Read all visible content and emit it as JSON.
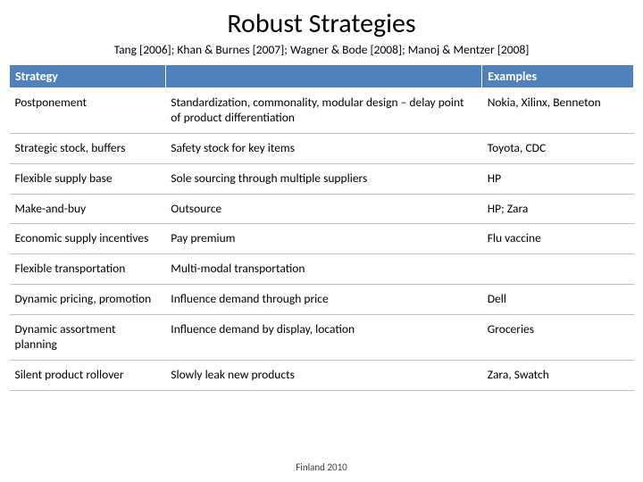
{
  "title": "Robust Strategies",
  "subtitle": "Tang [2006]; Khan & Burnes [2007]; Wagner & Bode [2008]; Manoj & Mentzer [2008]",
  "footer": "Finland 2010",
  "table": {
    "header_bg": "#4f81bd",
    "header_color": "#ffffff",
    "border_color": "#bfbfbf",
    "columns": [
      "Strategy",
      "",
      "Examples"
    ],
    "rows": [
      [
        "Postponement",
        "Standardization, commonality, modular design – delay point of product differentiation",
        "Nokia, Xilinx, Benneton"
      ],
      [
        "Strategic stock, buffers",
        "Safety stock for key items",
        "Toyota, CDC"
      ],
      [
        "Flexible supply base",
        "Sole sourcing through multiple suppliers",
        "HP"
      ],
      [
        "Make-and-buy",
        "Outsource",
        "HP; Zara"
      ],
      [
        "Economic supply incentives",
        "Pay premium",
        "Flu vaccine"
      ],
      [
        "Flexible transportation",
        "Multi-modal transportation",
        ""
      ],
      [
        "Dynamic pricing, promotion",
        "Influence demand through price",
        "Dell"
      ],
      [
        "Dynamic assortment planning",
        "Influence demand by display, location",
        "Groceries"
      ],
      [
        "Silent product rollover",
        "Slowly leak new products",
        "Zara, Swatch"
      ]
    ]
  }
}
